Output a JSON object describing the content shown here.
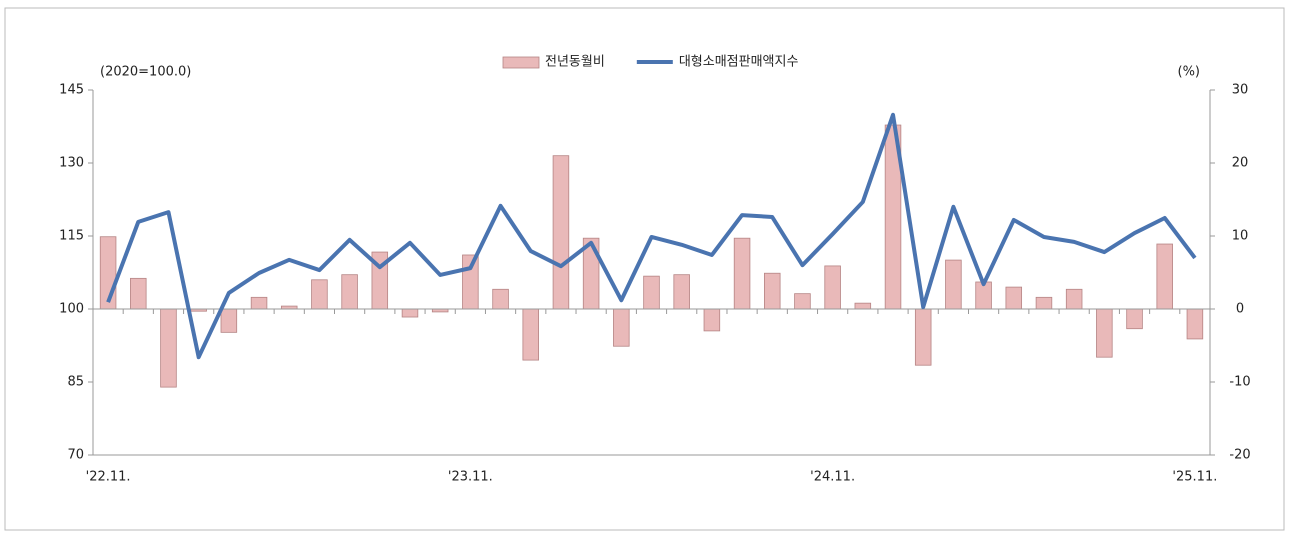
{
  "chart_data": {
    "type": "combo",
    "y_label": "(2020=100.0)",
    "y2_label": "(%)",
    "categories": [
      "'22.11.",
      null,
      null,
      null,
      null,
      null,
      null,
      null,
      null,
      null,
      null,
      null,
      "'23.11.",
      null,
      null,
      null,
      null,
      null,
      null,
      null,
      null,
      null,
      null,
      null,
      "'24.11.",
      null,
      null,
      null,
      null,
      null,
      null,
      null,
      null,
      null,
      null,
      null,
      "'25.11."
    ],
    "ylim": [
      70,
      145
    ],
    "yticks": [
      70,
      85,
      100,
      115,
      130,
      145
    ],
    "y2lim": [
      -20,
      30
    ],
    "y2ticks": [
      -20,
      -10,
      0,
      10,
      20,
      30
    ],
    "grid": false,
    "legend": "top",
    "series": [
      {
        "name": "전년동월비",
        "type": "bar",
        "axis": "y2",
        "color": "#e9b9b9",
        "values": [
          9.9,
          4.2,
          -10.7,
          -0.3,
          -3.2,
          1.6,
          0.4,
          4.0,
          4.7,
          7.8,
          -1.1,
          -0.4,
          7.4,
          2.7,
          -7.0,
          21.0,
          9.7,
          -5.1,
          4.5,
          4.7,
          -3.0,
          9.7,
          4.9,
          2.1,
          5.9,
          0.8,
          25.2,
          -7.7,
          6.7,
          3.7,
          3.0,
          1.6,
          2.7,
          -6.6,
          -2.7,
          8.9,
          -4.1
        ]
      },
      {
        "name": "대형소매점판매액지수",
        "type": "line",
        "axis": "y",
        "color": "#4a74b0",
        "values": [
          101.4,
          117.9,
          119.9,
          90.1,
          103.3,
          107.4,
          110.1,
          108.0,
          114.2,
          108.6,
          113.6,
          107.0,
          108.4,
          121.2,
          111.9,
          108.8,
          113.6,
          101.8,
          114.8,
          113.2,
          111.1,
          119.3,
          118.9,
          109.0,
          115.4,
          122.0,
          139.9,
          100.4,
          121.0,
          105.1,
          118.3,
          114.8,
          113.8,
          111.7,
          115.6,
          118.7,
          110.5
        ]
      }
    ]
  }
}
